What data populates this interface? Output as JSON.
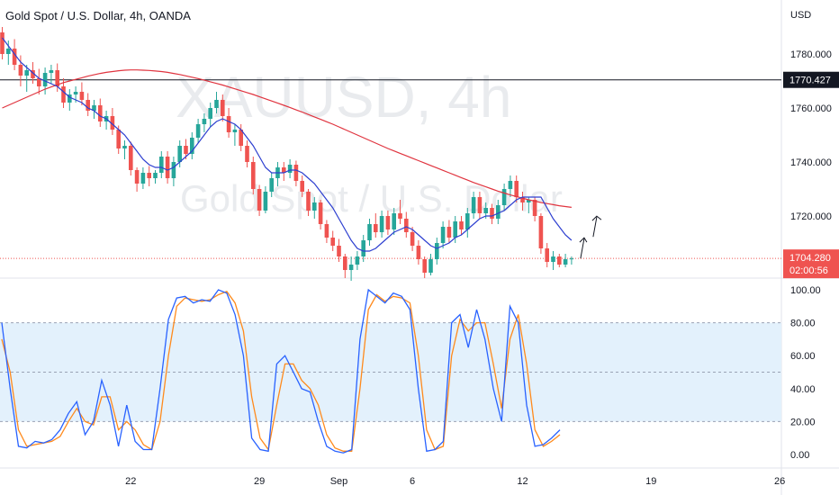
{
  "header": {
    "title": "Gold Spot / U.S. Dollar, 4h, OANDA"
  },
  "watermark": {
    "symbol": "XAUUSD, 4h",
    "name": "Gold Spot / U.S. Dollar"
  },
  "colors": {
    "up": "#26a69a",
    "down": "#ef5350",
    "ma_fast": "#2d3fd0",
    "ma_slow": "#e0343f",
    "stoch_k": "#2962ff",
    "stoch_d": "#ff8a1c",
    "band": "#e3f1fc",
    "cross_line": "#131722",
    "last_price_line": "#ef5350"
  },
  "chart_data": [
    {
      "type": "candlestick",
      "title": "Gold Spot / U.S. Dollar, 4h, OANDA",
      "currency_label": "USD",
      "ylim": [
        1700,
        1790
      ],
      "y_ticks": [
        1780,
        1760,
        1740,
        1720
      ],
      "y_tick_labels": [
        "1780.000",
        "1760.000",
        "1740.000",
        "1720.000"
      ],
      "x_tick_labels": [
        "22",
        "29",
        "Sep",
        "6",
        "12",
        "19",
        "26"
      ],
      "x_tick_positions": [
        21,
        42,
        55,
        67,
        85,
        106,
        127
      ],
      "crosshair": {
        "price": 1770.427,
        "label": "1770.427"
      },
      "last_price": {
        "price": 1704.28,
        "label": "1704.280",
        "countdown": "02:00:56"
      },
      "candles": [
        [
          1788.0,
          1790.0,
          1778.0,
          1780.0
        ],
        [
          1780.0,
          1785.0,
          1776.0,
          1782.0
        ],
        [
          1782.0,
          1785.5,
          1774.0,
          1776.0
        ],
        [
          1776.0,
          1779.5,
          1768.0,
          1772.0
        ],
        [
          1772.0,
          1776.0,
          1766.0,
          1774.0
        ],
        [
          1774.0,
          1777.0,
          1769.0,
          1771.0
        ],
        [
          1771.0,
          1774.5,
          1765.0,
          1768.0
        ],
        [
          1768.0,
          1775.0,
          1765.0,
          1773.0
        ],
        [
          1773.0,
          1776.0,
          1769.0,
          1774.0
        ],
        [
          1774.0,
          1776.5,
          1766.0,
          1768.0
        ],
        [
          1768.0,
          1771.0,
          1760.0,
          1762.0
        ],
        [
          1762.0,
          1767.0,
          1759.0,
          1765.0
        ],
        [
          1765.0,
          1768.0,
          1762.0,
          1766.0
        ],
        [
          1766.0,
          1769.5,
          1761.0,
          1763.0
        ],
        [
          1763.0,
          1765.5,
          1757.0,
          1759.0
        ],
        [
          1759.0,
          1763.0,
          1756.0,
          1761.0
        ],
        [
          1761.0,
          1763.5,
          1753.0,
          1755.0
        ],
        [
          1755.0,
          1759.0,
          1752.0,
          1757.0
        ],
        [
          1757.0,
          1760.0,
          1750.0,
          1752.0
        ],
        [
          1752.0,
          1753.5,
          1743.0,
          1745.0
        ],
        [
          1745.0,
          1748.0,
          1741.0,
          1746.0
        ],
        [
          1746.0,
          1747.5,
          1735.0,
          1737.0
        ],
        [
          1737.0,
          1738.0,
          1729.0,
          1732.0
        ],
        [
          1732.0,
          1738.0,
          1730.0,
          1736.0
        ],
        [
          1736.0,
          1738.5,
          1731.0,
          1734.0
        ],
        [
          1734.0,
          1737.0,
          1732.0,
          1736.0
        ],
        [
          1736.0,
          1744.0,
          1734.0,
          1742.0
        ],
        [
          1742.0,
          1744.0,
          1732.0,
          1734.0
        ],
        [
          1734.0,
          1742.0,
          1731.0,
          1740.0
        ],
        [
          1740.0,
          1748.0,
          1738.0,
          1746.0
        ],
        [
          1746.0,
          1748.5,
          1741.0,
          1743.0
        ],
        [
          1743.0,
          1751.0,
          1741.0,
          1749.0
        ],
        [
          1749.0,
          1756.0,
          1747.0,
          1754.0
        ],
        [
          1754.0,
          1758.0,
          1751.0,
          1756.0
        ],
        [
          1756.0,
          1762.0,
          1753.0,
          1760.0
        ],
        [
          1760.0,
          1766.0,
          1758.0,
          1763.0
        ],
        [
          1763.0,
          1765.0,
          1755.0,
          1757.0
        ],
        [
          1757.0,
          1760.0,
          1749.0,
          1751.0
        ],
        [
          1751.0,
          1754.0,
          1746.0,
          1752.0
        ],
        [
          1752.0,
          1754.0,
          1744.0,
          1746.0
        ],
        [
          1746.0,
          1748.0,
          1738.0,
          1740.0
        ],
        [
          1740.0,
          1742.0,
          1728.0,
          1730.0
        ],
        [
          1730.0,
          1731.5,
          1720.0,
          1722.0
        ],
        [
          1722.0,
          1731.0,
          1721.0,
          1729.0
        ],
        [
          1729.0,
          1736.0,
          1727.0,
          1734.0
        ],
        [
          1734.0,
          1740.0,
          1731.0,
          1738.0
        ],
        [
          1738.0,
          1740.0,
          1733.0,
          1736.0
        ],
        [
          1736.0,
          1741.0,
          1734.0,
          1739.0
        ],
        [
          1739.0,
          1740.5,
          1731.0,
          1733.0
        ],
        [
          1733.0,
          1735.0,
          1727.0,
          1729.0
        ],
        [
          1729.0,
          1730.0,
          1720.0,
          1722.0
        ],
        [
          1722.0,
          1727.0,
          1719.0,
          1725.0
        ],
        [
          1725.0,
          1726.0,
          1715.0,
          1717.0
        ],
        [
          1717.0,
          1718.5,
          1710.0,
          1712.0
        ],
        [
          1712.0,
          1714.5,
          1707.0,
          1709.0
        ],
        [
          1709.0,
          1711.5,
          1703.0,
          1705.0
        ],
        [
          1705.0,
          1706.0,
          1697.0,
          1700.0
        ],
        [
          1700.0,
          1705.0,
          1696.0,
          1702.0
        ],
        [
          1702.0,
          1707.0,
          1700.0,
          1705.0
        ],
        [
          1705.0,
          1713.0,
          1703.0,
          1711.0
        ],
        [
          1711.0,
          1719.0,
          1709.0,
          1717.0
        ],
        [
          1717.0,
          1721.0,
          1712.0,
          1714.0
        ],
        [
          1714.0,
          1722.0,
          1712.0,
          1720.0
        ],
        [
          1720.0,
          1722.0,
          1713.0,
          1715.0
        ],
        [
          1715.0,
          1723.0,
          1713.0,
          1721.0
        ],
        [
          1721.0,
          1726.0,
          1717.0,
          1719.0
        ],
        [
          1719.0,
          1721.5,
          1712.0,
          1714.0
        ],
        [
          1714.0,
          1716.0,
          1707.0,
          1709.0
        ],
        [
          1709.0,
          1711.0,
          1702.0,
          1704.0
        ],
        [
          1704.0,
          1705.0,
          1697.0,
          1699.0
        ],
        [
          1699.0,
          1706.0,
          1698.0,
          1704.0
        ],
        [
          1704.0,
          1712.0,
          1702.0,
          1710.0
        ],
        [
          1710.0,
          1718.0,
          1708.0,
          1716.0
        ],
        [
          1716.0,
          1718.5,
          1710.0,
          1712.0
        ],
        [
          1712.0,
          1720.0,
          1710.0,
          1718.0
        ],
        [
          1718.0,
          1720.0,
          1713.0,
          1715.0
        ],
        [
          1715.0,
          1723.0,
          1712.0,
          1721.0
        ],
        [
          1721.0,
          1729.0,
          1719.0,
          1727.0
        ],
        [
          1727.0,
          1729.0,
          1719.0,
          1721.0
        ],
        [
          1721.0,
          1725.0,
          1719.0,
          1723.0
        ],
        [
          1723.0,
          1724.5,
          1717.0,
          1719.0
        ],
        [
          1719.0,
          1726.0,
          1717.0,
          1724.0
        ],
        [
          1724.0,
          1732.0,
          1722.0,
          1730.0
        ],
        [
          1730.0,
          1735.0,
          1727.0,
          1733.0
        ],
        [
          1733.0,
          1735.0,
          1725.0,
          1727.0
        ],
        [
          1727.0,
          1729.0,
          1722.0,
          1725.0
        ],
        [
          1725.0,
          1727.0,
          1721.0,
          1726.0
        ],
        [
          1726.0,
          1727.0,
          1718.0,
          1720.0
        ],
        [
          1720.0,
          1721.0,
          1706.0,
          1708.0
        ],
        [
          1708.0,
          1710.0,
          1701.0,
          1703.0
        ],
        [
          1703.0,
          1707.0,
          1700.0,
          1705.0
        ],
        [
          1705.0,
          1706.0,
          1701.0,
          1702.0
        ],
        [
          1702.0,
          1706.0,
          1701.0,
          1704.0
        ],
        [
          1704.0,
          1705.0,
          1702.0,
          1704.28
        ]
      ],
      "ma_fast": [
        1786,
        1783,
        1780,
        1777,
        1775,
        1773,
        1771,
        1770,
        1769,
        1768,
        1766,
        1764,
        1763,
        1762,
        1760,
        1759,
        1757,
        1756,
        1754,
        1752,
        1750,
        1747,
        1744,
        1741,
        1739,
        1738,
        1738,
        1737,
        1738,
        1740,
        1742,
        1744,
        1747,
        1750,
        1753,
        1755,
        1756,
        1755,
        1754,
        1752,
        1749,
        1746,
        1742,
        1738,
        1736,
        1736,
        1736,
        1737,
        1737,
        1736,
        1734,
        1732,
        1729,
        1726,
        1723,
        1719,
        1715,
        1711,
        1708,
        1707,
        1707,
        1708,
        1710,
        1712,
        1714,
        1715,
        1716,
        1715,
        1713,
        1711,
        1709,
        1708,
        1709,
        1710,
        1712,
        1713,
        1715,
        1717,
        1719,
        1720,
        1720,
        1721,
        1722,
        1724,
        1726,
        1727,
        1727,
        1727,
        1727,
        1723,
        1719,
        1716,
        1713,
        1711
      ],
      "ma_slow": [
        1760.0,
        1761.0,
        1762.0,
        1763.0,
        1764.0,
        1765.0,
        1766.0,
        1767.0,
        1767.8,
        1768.6,
        1769.4,
        1770.0,
        1770.6,
        1771.2,
        1771.8,
        1772.3,
        1772.8,
        1773.2,
        1773.5,
        1773.8,
        1774.0,
        1774.1,
        1774.1,
        1774.0,
        1773.9,
        1773.7,
        1773.5,
        1773.2,
        1772.8,
        1772.4,
        1771.9,
        1771.4,
        1770.9,
        1770.3,
        1769.7,
        1769.1,
        1768.5,
        1767.8,
        1767.1,
        1766.4,
        1765.7,
        1765.0,
        1764.2,
        1763.4,
        1762.6,
        1761.8,
        1761.0,
        1760.2,
        1759.3,
        1758.5,
        1757.6,
        1756.7,
        1755.8,
        1754.9,
        1754.0,
        1753.0,
        1752.0,
        1751.0,
        1750.0,
        1749.0,
        1748.0,
        1747.0,
        1746.0,
        1745.0,
        1744.1,
        1743.2,
        1742.3,
        1741.4,
        1740.5,
        1739.6,
        1738.7,
        1737.8,
        1736.9,
        1736.0,
        1735.1,
        1734.2,
        1733.3,
        1732.4,
        1731.6,
        1730.8,
        1730.0,
        1729.2,
        1728.5,
        1727.8,
        1727.2,
        1726.6,
        1726.0,
        1725.5,
        1725.0,
        1724.6,
        1724.2,
        1723.8,
        1723.5,
        1723.2
      ]
    },
    {
      "type": "line",
      "indicator": "stochastic",
      "ylim": [
        0,
        110
      ],
      "y_ticks": [
        100,
        80,
        60,
        40,
        20,
        0
      ],
      "y_tick_labels": [
        "100.00",
        "80.00",
        "60.00",
        "40.00",
        "20.00",
        "0.00"
      ],
      "band": [
        20,
        80
      ],
      "midline": 50,
      "series": [
        {
          "key": "k",
          "values": [
            80,
            40,
            5,
            4,
            8,
            7,
            9,
            15,
            25,
            32,
            12,
            20,
            45,
            30,
            5,
            30,
            8,
            3,
            3,
            40,
            82,
            95,
            96,
            92,
            94,
            93,
            100,
            98,
            85,
            60,
            10,
            3,
            2,
            55,
            60,
            50,
            40,
            38,
            20,
            5,
            2,
            1,
            3,
            70,
            100,
            96,
            92,
            98,
            96,
            88,
            40,
            2,
            3,
            8,
            80,
            85,
            65,
            88,
            70,
            40,
            20,
            90,
            80,
            30,
            5,
            6,
            10,
            15
          ]
        },
        {
          "key": "d",
          "values": [
            70,
            50,
            15,
            5,
            6,
            7,
            8,
            11,
            20,
            28,
            20,
            18,
            35,
            35,
            15,
            20,
            15,
            6,
            3,
            20,
            60,
            90,
            95,
            94,
            93,
            94,
            97,
            99,
            92,
            75,
            35,
            10,
            3,
            30,
            55,
            55,
            45,
            40,
            30,
            12,
            4,
            2,
            2,
            40,
            88,
            97,
            93,
            96,
            95,
            92,
            60,
            15,
            3,
            5,
            60,
            82,
            75,
            80,
            80,
            55,
            28,
            70,
            85,
            55,
            15,
            5,
            8,
            12
          ]
        }
      ]
    }
  ]
}
